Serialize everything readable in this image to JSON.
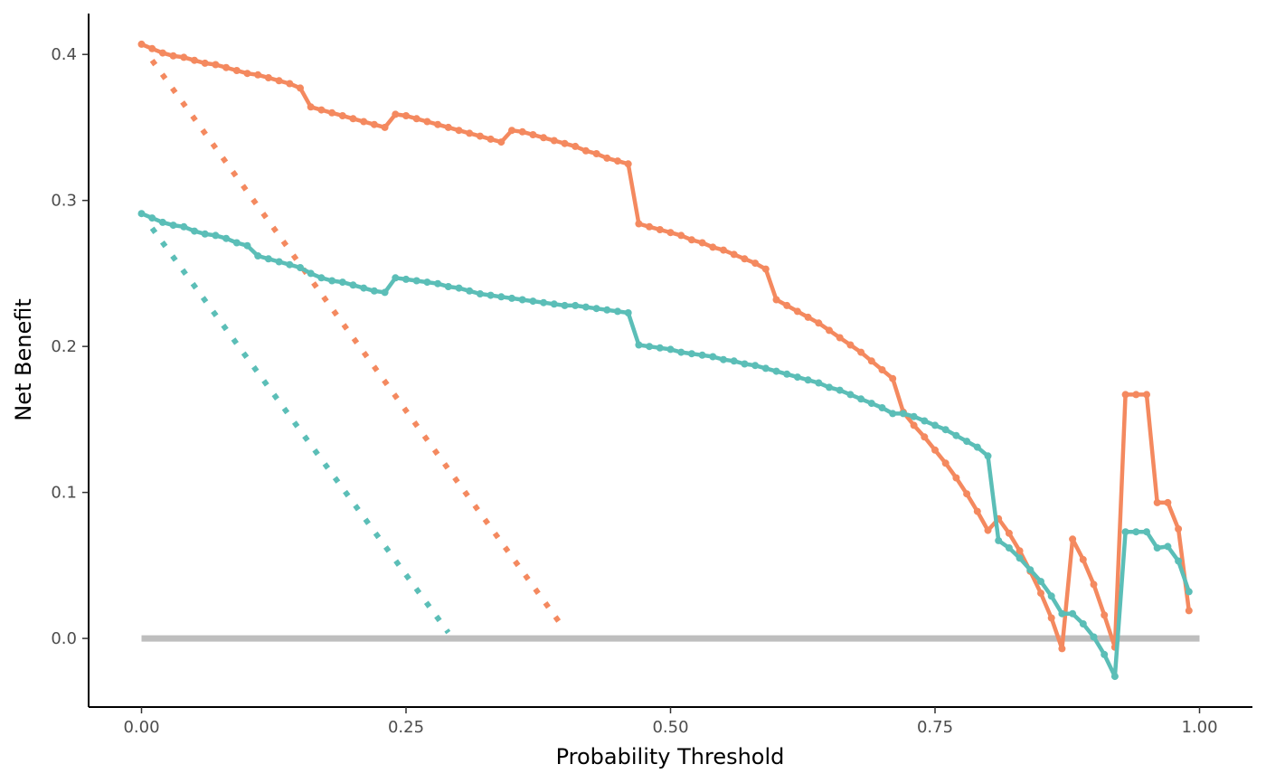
{
  "chart_data": {
    "type": "line",
    "xlabel": "Probability Threshold",
    "ylabel": "Net Benefit",
    "xlim": [
      -0.05,
      1.05
    ],
    "ylim": [
      -0.047,
      0.428
    ],
    "x_ticks": [
      0,
      0.25,
      0.5,
      0.75,
      1
    ],
    "x_tick_labels": [
      "0.00",
      "0.25",
      "0.50",
      "0.75",
      "1.00"
    ],
    "y_ticks": [
      0,
      0.1,
      0.2,
      0.3,
      0.4
    ],
    "y_tick_labels": [
      "0.0",
      "0.1",
      "0.2",
      "0.3",
      "0.4"
    ],
    "grid": false,
    "legend": "none",
    "series": [
      {
        "style": "solid-with-points",
        "color": "#F4895F",
        "x": [
          0,
          0.01,
          0.02,
          0.03,
          0.04,
          0.05,
          0.06,
          0.07,
          0.08,
          0.09,
          0.1,
          0.11,
          0.12,
          0.13,
          0.14,
          0.15,
          0.16,
          0.17,
          0.18,
          0.19,
          0.2,
          0.21,
          0.22,
          0.23,
          0.24,
          0.25,
          0.26,
          0.27,
          0.28,
          0.29,
          0.3,
          0.31,
          0.32,
          0.33,
          0.34,
          0.35,
          0.36,
          0.37,
          0.38,
          0.39,
          0.4,
          0.41,
          0.42,
          0.43,
          0.44,
          0.45,
          0.46,
          0.47,
          0.48,
          0.49,
          0.5,
          0.51,
          0.52,
          0.53,
          0.54,
          0.55,
          0.56,
          0.57,
          0.58,
          0.59,
          0.6,
          0.61,
          0.62,
          0.63,
          0.64,
          0.65,
          0.66,
          0.67,
          0.68,
          0.69,
          0.7,
          0.71,
          0.72,
          0.73,
          0.74,
          0.75,
          0.76,
          0.77,
          0.78,
          0.79,
          0.8,
          0.81,
          0.82,
          0.83,
          0.84,
          0.85,
          0.86,
          0.87,
          0.88,
          0.89,
          0.9,
          0.91,
          0.92,
          0.93,
          0.94,
          0.95,
          0.96,
          0.97,
          0.98,
          0.99
        ],
        "y": [
          0.407,
          0.404,
          0.401,
          0.399,
          0.398,
          0.396,
          0.394,
          0.393,
          0.391,
          0.389,
          0.387,
          0.386,
          0.384,
          0.382,
          0.38,
          0.377,
          0.364,
          0.362,
          0.36,
          0.358,
          0.356,
          0.354,
          0.352,
          0.35,
          0.359,
          0.358,
          0.356,
          0.354,
          0.352,
          0.35,
          0.348,
          0.346,
          0.344,
          0.342,
          0.34,
          0.348,
          0.347,
          0.345,
          0.343,
          0.341,
          0.339,
          0.337,
          0.334,
          0.332,
          0.329,
          0.327,
          0.325,
          0.284,
          0.282,
          0.28,
          0.278,
          0.276,
          0.273,
          0.271,
          0.268,
          0.266,
          0.263,
          0.26,
          0.257,
          0.253,
          0.232,
          0.228,
          0.224,
          0.22,
          0.216,
          0.211,
          0.206,
          0.201,
          0.196,
          0.19,
          0.184,
          0.178,
          0.155,
          0.146,
          0.138,
          0.129,
          0.12,
          0.11,
          0.099,
          0.087,
          0.074,
          0.082,
          0.072,
          0.06,
          0.046,
          0.031,
          0.014,
          -0.007,
          0.068,
          0.054,
          0.037,
          0.016,
          -0.006,
          0.167,
          0.167,
          0.167,
          0.093,
          0.093,
          0.075,
          0.019
        ]
      },
      {
        "style": "dotted",
        "color": "#F4895F",
        "x": [
          0.01,
          0.4
        ],
        "y": [
          0.396,
          0.006
        ]
      },
      {
        "style": "solid-with-points",
        "color": "#5BBEB7",
        "x": [
          0,
          0.01,
          0.02,
          0.03,
          0.04,
          0.05,
          0.06,
          0.07,
          0.08,
          0.09,
          0.1,
          0.11,
          0.12,
          0.13,
          0.14,
          0.15,
          0.16,
          0.17,
          0.18,
          0.19,
          0.2,
          0.21,
          0.22,
          0.23,
          0.24,
          0.25,
          0.26,
          0.27,
          0.28,
          0.29,
          0.3,
          0.31,
          0.32,
          0.33,
          0.34,
          0.35,
          0.36,
          0.37,
          0.38,
          0.39,
          0.4,
          0.41,
          0.42,
          0.43,
          0.44,
          0.45,
          0.46,
          0.47,
          0.48,
          0.49,
          0.5,
          0.51,
          0.52,
          0.53,
          0.54,
          0.55,
          0.56,
          0.57,
          0.58,
          0.59,
          0.6,
          0.61,
          0.62,
          0.63,
          0.64,
          0.65,
          0.66,
          0.67,
          0.68,
          0.69,
          0.7,
          0.71,
          0.72,
          0.73,
          0.74,
          0.75,
          0.76,
          0.77,
          0.78,
          0.79,
          0.8,
          0.81,
          0.82,
          0.83,
          0.84,
          0.85,
          0.86,
          0.87,
          0.88,
          0.89,
          0.9,
          0.91,
          0.92,
          0.93,
          0.94,
          0.95,
          0.96,
          0.97,
          0.98,
          0.99
        ],
        "y": [
          0.291,
          0.288,
          0.285,
          0.283,
          0.282,
          0.279,
          0.277,
          0.276,
          0.274,
          0.271,
          0.269,
          0.262,
          0.26,
          0.258,
          0.256,
          0.254,
          0.25,
          0.247,
          0.245,
          0.244,
          0.242,
          0.24,
          0.238,
          0.237,
          0.247,
          0.246,
          0.245,
          0.244,
          0.243,
          0.241,
          0.24,
          0.238,
          0.236,
          0.235,
          0.234,
          0.233,
          0.232,
          0.231,
          0.23,
          0.229,
          0.228,
          0.228,
          0.227,
          0.226,
          0.225,
          0.224,
          0.223,
          0.201,
          0.2,
          0.199,
          0.198,
          0.196,
          0.195,
          0.194,
          0.193,
          0.191,
          0.19,
          0.188,
          0.187,
          0.185,
          0.183,
          0.181,
          0.179,
          0.177,
          0.175,
          0.172,
          0.17,
          0.167,
          0.164,
          0.161,
          0.158,
          0.154,
          0.154,
          0.152,
          0.149,
          0.146,
          0.143,
          0.139,
          0.135,
          0.131,
          0.125,
          0.067,
          0.062,
          0.055,
          0.047,
          0.039,
          0.029,
          0.017,
          0.017,
          0.01,
          0.001,
          -0.011,
          -0.026,
          0.073,
          0.073,
          0.073,
          0.062,
          0.063,
          0.053,
          0.032
        ]
      },
      {
        "style": "dotted",
        "color": "#5BBEB7",
        "x": [
          0.01,
          0.29
        ],
        "y": [
          0.281,
          0.004
        ]
      },
      {
        "style": "solid",
        "color": "#BEBEBE",
        "x": [
          0,
          1
        ],
        "y": [
          0,
          0
        ]
      }
    ]
  }
}
